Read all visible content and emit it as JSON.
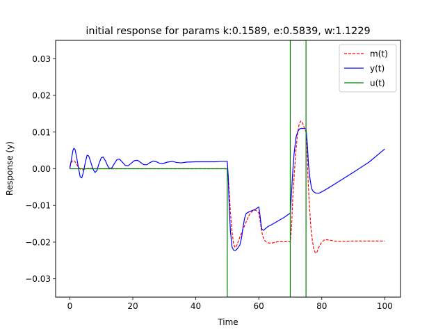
{
  "chart_data": {
    "type": "line",
    "title": "initial response for params k:0.1589, e:0.5839, w:1.1229",
    "xlabel": "Time",
    "ylabel": "Response (y)",
    "xlim": [
      -4.5,
      105
    ],
    "ylim": [
      -0.035,
      0.035
    ],
    "xticks": [
      0,
      20,
      40,
      60,
      80,
      100
    ],
    "xtick_labels": [
      "0",
      "20",
      "40",
      "60",
      "80",
      "100"
    ],
    "yticks": [
      -0.03,
      -0.02,
      -0.01,
      0.0,
      0.01,
      0.02,
      0.03
    ],
    "ytick_labels": [
      "−0.03",
      "−0.02",
      "−0.01",
      "0.00",
      "0.01",
      "0.02",
      "0.03"
    ],
    "grid": false,
    "legend_position": "top-right",
    "series": [
      {
        "name": "m(t)",
        "color": "#ff0000",
        "style": "dashed",
        "points": [
          [
            0,
            0.0005
          ],
          [
            0.5,
            0.0018
          ],
          [
            1,
            0.0022
          ],
          [
            1.5,
            0.0021
          ],
          [
            2,
            0.0015
          ],
          [
            2.5,
            0.0007
          ],
          [
            3,
            0.0002
          ],
          [
            3.5,
            -0.0002
          ],
          [
            4,
            -0.0003
          ],
          [
            5,
            -0.0001
          ],
          [
            6,
            0.0001
          ],
          [
            7,
            0.0001
          ],
          [
            8,
            0
          ],
          [
            10,
            0
          ],
          [
            20,
            0
          ],
          [
            30,
            0
          ],
          [
            40,
            0
          ],
          [
            49.8,
            0
          ],
          [
            50.2,
            -0.001
          ],
          [
            50.6,
            -0.006
          ],
          [
            51,
            -0.012
          ],
          [
            51.5,
            -0.017
          ],
          [
            52,
            -0.0205
          ],
          [
            52.5,
            -0.0215
          ],
          [
            53,
            -0.021
          ],
          [
            53.6,
            -0.0195
          ],
          [
            54.3,
            -0.018
          ],
          [
            55,
            -0.0165
          ],
          [
            56,
            -0.0145
          ],
          [
            57,
            -0.0125
          ],
          [
            58,
            -0.0115
          ],
          [
            59,
            -0.0113
          ],
          [
            60,
            -0.012
          ],
          [
            60.4,
            -0.014
          ],
          [
            60.8,
            -0.0165
          ],
          [
            61.3,
            -0.0185
          ],
          [
            62,
            -0.0197
          ],
          [
            63,
            -0.0202
          ],
          [
            64,
            -0.0203
          ],
          [
            65,
            -0.0201
          ],
          [
            66,
            -0.0199
          ],
          [
            67,
            -0.0199
          ],
          [
            68,
            -0.0199
          ],
          [
            69,
            -0.0199
          ],
          [
            70,
            -0.0199
          ],
          [
            70.4,
            -0.016
          ],
          [
            70.8,
            -0.008
          ],
          [
            71.3,
            -0.001
          ],
          [
            71.8,
            0.005
          ],
          [
            72.3,
            0.0095
          ],
          [
            72.8,
            0.012
          ],
          [
            73.3,
            0.013
          ],
          [
            73.8,
            0.0127
          ],
          [
            74.3,
            0.0115
          ],
          [
            75,
            0.01
          ],
          [
            75.3,
            0.006
          ],
          [
            75.6,
            -0.002
          ],
          [
            76,
            -0.009
          ],
          [
            76.5,
            -0.0155
          ],
          [
            77,
            -0.0195
          ],
          [
            77.5,
            -0.022
          ],
          [
            78,
            -0.023
          ],
          [
            78.5,
            -0.0227
          ],
          [
            79,
            -0.0215
          ],
          [
            80,
            -0.02
          ],
          [
            81,
            -0.0193
          ],
          [
            82,
            -0.0194
          ],
          [
            84,
            -0.0197
          ],
          [
            86,
            -0.0198
          ],
          [
            90,
            -0.0197
          ],
          [
            95,
            -0.0197
          ],
          [
            100,
            -0.0197
          ]
        ]
      },
      {
        "name": "y(t)",
        "color": "#0000ff",
        "style": "solid",
        "points": [
          [
            0,
            0
          ],
          [
            0.5,
            0.0025
          ],
          [
            1,
            0.005
          ],
          [
            1.3,
            0.0056
          ],
          [
            1.7,
            0.0052
          ],
          [
            2.2,
            0.003
          ],
          [
            2.8,
            0
          ],
          [
            3.3,
            -0.0022
          ],
          [
            3.8,
            -0.0025
          ],
          [
            4.3,
            -0.001
          ],
          [
            5,
            0.002
          ],
          [
            5.5,
            0.0037
          ],
          [
            6,
            0.0035
          ],
          [
            6.6,
            0.002
          ],
          [
            7.3,
            0
          ],
          [
            8,
            -0.001
          ],
          [
            8.6,
            -0.0005
          ],
          [
            9.3,
            0.0015
          ],
          [
            10,
            0.003
          ],
          [
            10.6,
            0.0032
          ],
          [
            11.3,
            0.0022
          ],
          [
            12,
            0.0008
          ],
          [
            12.7,
            0
          ],
          [
            13.4,
            0.0003
          ],
          [
            14.2,
            0.0015
          ],
          [
            15,
            0.0025
          ],
          [
            15.8,
            0.0026
          ],
          [
            16.7,
            0.0018
          ],
          [
            17.6,
            0.0009
          ],
          [
            18.5,
            0.0008
          ],
          [
            19.5,
            0.0015
          ],
          [
            20.5,
            0.0022
          ],
          [
            21.5,
            0.0023
          ],
          [
            22.5,
            0.0017
          ],
          [
            23.5,
            0.0011
          ],
          [
            24.5,
            0.0011
          ],
          [
            25.5,
            0.0017
          ],
          [
            26.5,
            0.0021
          ],
          [
            27.5,
            0.0019
          ],
          [
            28.5,
            0.0015
          ],
          [
            29.5,
            0.0014
          ],
          [
            31,
            0.0018
          ],
          [
            32.5,
            0.002
          ],
          [
            34,
            0.0017
          ],
          [
            35.5,
            0.0016
          ],
          [
            37,
            0.0018
          ],
          [
            40,
            0.0019
          ],
          [
            43,
            0.0019
          ],
          [
            46,
            0.0019
          ],
          [
            48,
            0.002
          ],
          [
            50,
            0.002
          ],
          [
            50.3,
            -0.002
          ],
          [
            50.6,
            -0.01
          ],
          [
            51,
            -0.017
          ],
          [
            51.5,
            -0.0213
          ],
          [
            52,
            -0.0222
          ],
          [
            52.5,
            -0.0223
          ],
          [
            53,
            -0.022
          ],
          [
            53.5,
            -0.0214
          ],
          [
            54,
            -0.0208
          ],
          [
            54.5,
            -0.019
          ],
          [
            55,
            -0.016
          ],
          [
            55.5,
            -0.0135
          ],
          [
            56,
            -0.0122
          ],
          [
            57,
            -0.0117
          ],
          [
            58,
            -0.0114
          ],
          [
            59,
            -0.011
          ],
          [
            60,
            -0.0104
          ],
          [
            60.3,
            -0.012
          ],
          [
            60.7,
            -0.015
          ],
          [
            61,
            -0.0165
          ],
          [
            61.5,
            -0.0168
          ],
          [
            62,
            -0.0164
          ],
          [
            63,
            -0.0157
          ],
          [
            64,
            -0.0153
          ],
          [
            66,
            -0.0143
          ],
          [
            68,
            -0.0133
          ],
          [
            70,
            -0.0121
          ],
          [
            70.3,
            -0.008
          ],
          [
            70.7,
            -0.002
          ],
          [
            71.2,
            0.004
          ],
          [
            71.8,
            0.0085
          ],
          [
            72.4,
            0.0102
          ],
          [
            73,
            0.0109
          ],
          [
            73.6,
            0.011
          ],
          [
            74.2,
            0.011
          ],
          [
            75,
            0.0109
          ],
          [
            75.4,
            0.007
          ],
          [
            75.8,
            0.001
          ],
          [
            76.3,
            -0.003
          ],
          [
            76.8,
            -0.0055
          ],
          [
            77.3,
            -0.0062
          ],
          [
            78,
            -0.0066
          ],
          [
            79,
            -0.0067
          ],
          [
            80,
            -0.0063
          ],
          [
            82,
            -0.0053
          ],
          [
            85,
            -0.0037
          ],
          [
            90,
            -0.001
          ],
          [
            95,
            0.0018
          ],
          [
            100,
            0.0054
          ]
        ]
      },
      {
        "name": "u(t)",
        "color": "#008000",
        "style": "solid",
        "points": [
          [
            0,
            0
          ],
          [
            50,
            0
          ],
          [
            50,
            -0.035
          ],
          [
            70,
            -0.035
          ],
          [
            70,
            0.035
          ],
          [
            75,
            0.035
          ],
          [
            75,
            -0.035
          ]
        ]
      }
    ]
  }
}
